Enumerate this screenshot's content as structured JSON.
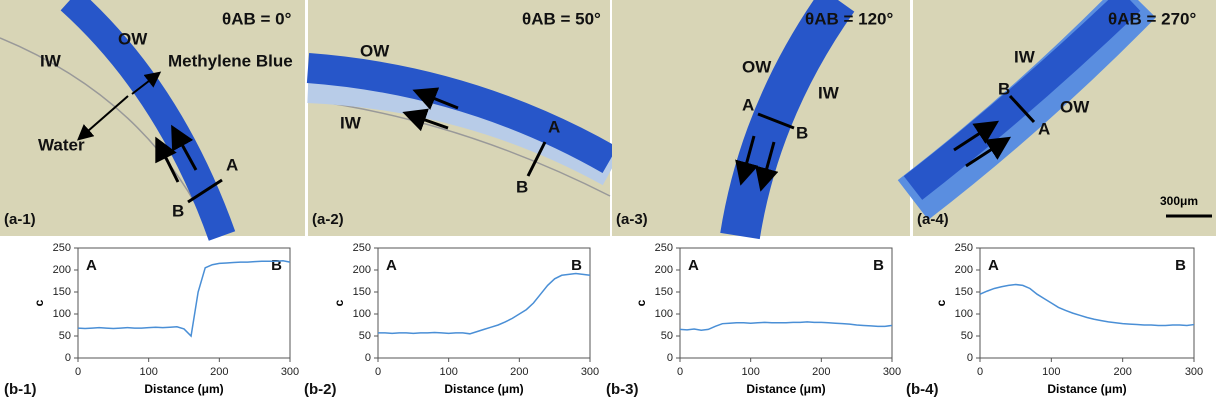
{
  "images": [
    {
      "label": "(a-1)",
      "angle": "θAB = 0°",
      "texts": [
        "IW",
        "OW",
        "Methylene Blue",
        "Water",
        "A",
        "B"
      ]
    },
    {
      "label": "(a-2)",
      "angle": "θAB = 50°",
      "texts": [
        "OW",
        "IW",
        "A",
        "B"
      ]
    },
    {
      "label": "(a-3)",
      "angle": "θAB = 120°",
      "texts": [
        "OW",
        "IW",
        "A",
        "B"
      ]
    },
    {
      "label": "(a-4)",
      "angle": "θAB = 270°",
      "texts": [
        "IW",
        "OW",
        "B",
        "A"
      ],
      "scale": "300μm"
    }
  ],
  "chart_data": [
    {
      "type": "line",
      "label": "(b-1)",
      "x_label": "Distance (μm)",
      "y_label": "c",
      "annotations": [
        "A",
        "B"
      ],
      "color": "#4a8fd6",
      "x": [
        0,
        10,
        20,
        30,
        40,
        50,
        60,
        70,
        80,
        90,
        100,
        110,
        120,
        130,
        140,
        150,
        160,
        170,
        180,
        190,
        200,
        210,
        220,
        230,
        240,
        250,
        260,
        270,
        280,
        290,
        300
      ],
      "values": [
        68,
        67,
        68,
        69,
        68,
        67,
        68,
        69,
        68,
        68,
        69,
        70,
        69,
        70,
        71,
        66,
        50,
        150,
        205,
        212,
        215,
        216,
        217,
        218,
        218,
        219,
        220,
        220,
        220,
        221,
        218
      ],
      "xlim": [
        0,
        300
      ],
      "xticks": [
        0,
        100,
        200,
        300
      ],
      "ylim": [
        0,
        250
      ],
      "yticks": [
        0,
        50,
        100,
        150,
        200,
        250
      ]
    },
    {
      "type": "line",
      "label": "(b-2)",
      "x_label": "Distance (μm)",
      "y_label": "c",
      "annotations": [
        "A",
        "B"
      ],
      "color": "#4a8fd6",
      "x": [
        0,
        10,
        20,
        30,
        40,
        50,
        60,
        70,
        80,
        90,
        100,
        110,
        120,
        130,
        140,
        150,
        160,
        170,
        180,
        190,
        200,
        210,
        220,
        230,
        240,
        250,
        260,
        270,
        280,
        290,
        300
      ],
      "values": [
        57,
        57,
        56,
        57,
        57,
        56,
        57,
        57,
        58,
        57,
        56,
        57,
        57,
        55,
        60,
        65,
        70,
        75,
        82,
        90,
        100,
        110,
        125,
        145,
        165,
        180,
        188,
        190,
        192,
        190,
        188
      ],
      "xlim": [
        0,
        300
      ],
      "xticks": [
        0,
        100,
        200,
        300
      ],
      "ylim": [
        0,
        250
      ],
      "yticks": [
        0,
        50,
        100,
        150,
        200,
        250
      ]
    },
    {
      "type": "line",
      "label": "(b-3)",
      "x_label": "Distance (μm)",
      "y_label": "c",
      "annotations": [
        "A",
        "B"
      ],
      "color": "#4a8fd6",
      "x": [
        0,
        10,
        20,
        30,
        40,
        50,
        60,
        70,
        80,
        90,
        100,
        110,
        120,
        130,
        140,
        150,
        160,
        170,
        180,
        190,
        200,
        210,
        220,
        230,
        240,
        250,
        260,
        270,
        280,
        290,
        300
      ],
      "values": [
        65,
        64,
        66,
        63,
        65,
        72,
        78,
        79,
        80,
        80,
        79,
        80,
        81,
        80,
        80,
        80,
        81,
        81,
        82,
        81,
        81,
        80,
        79,
        78,
        77,
        75,
        74,
        73,
        72,
        72,
        74
      ],
      "xlim": [
        0,
        300
      ],
      "xticks": [
        0,
        100,
        200,
        300
      ],
      "ylim": [
        0,
        250
      ],
      "yticks": [
        0,
        50,
        100,
        150,
        200,
        250
      ]
    },
    {
      "type": "line",
      "label": "(b-4)",
      "x_label": "Distance (μm)",
      "y_label": "c",
      "annotations": [
        "A",
        "B"
      ],
      "color": "#4a8fd6",
      "x": [
        0,
        10,
        20,
        30,
        40,
        50,
        60,
        70,
        80,
        90,
        100,
        110,
        120,
        130,
        140,
        150,
        160,
        170,
        180,
        190,
        200,
        210,
        220,
        230,
        240,
        250,
        260,
        270,
        280,
        290,
        300
      ],
      "values": [
        145,
        152,
        158,
        162,
        165,
        167,
        165,
        158,
        145,
        135,
        125,
        115,
        108,
        102,
        97,
        92,
        88,
        85,
        82,
        80,
        78,
        77,
        76,
        75,
        75,
        74,
        74,
        75,
        75,
        74,
        76
      ],
      "xlim": [
        0,
        300
      ],
      "xticks": [
        0,
        100,
        200,
        300
      ],
      "ylim": [
        0,
        250
      ],
      "yticks": [
        0,
        50,
        100,
        150,
        200,
        250
      ]
    }
  ]
}
